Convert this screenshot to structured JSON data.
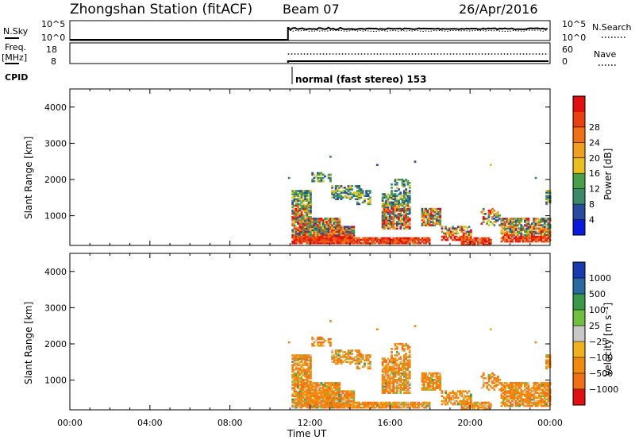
{
  "header": {
    "station": "Zhongshan Station (fitACF)",
    "beam": "Beam 07",
    "date": "26/Apr/2016"
  },
  "status_panels": {
    "nsky": {
      "left_label": "N.Sky",
      "left_ticks": [
        "10^5",
        "10^0"
      ],
      "right_label": "N.Search",
      "right_ticks": [
        "10^5",
        "10^0"
      ]
    },
    "freq": {
      "left_label_1": "Freq.",
      "left_label_2": "[MHz]",
      "left_ticks": [
        "18",
        "8"
      ],
      "right_label": "Nave",
      "right_ticks": [
        "60",
        "0"
      ]
    },
    "cpid": {
      "label": "CPID",
      "mode_text": "normal (fast stereo) 153"
    }
  },
  "colors": {
    "power_scale": [
      "#0a1adc",
      "#2a4aa0",
      "#3a8a6a",
      "#4aa04a",
      "#e8c020",
      "#f0a020",
      "#f07018",
      "#e84010",
      "#e01010"
    ],
    "velocity_scale": [
      "#e01010",
      "#f07018",
      "#f08a10",
      "#f0b020",
      "#c8c8c8",
      "#70c040",
      "#3a9a4a",
      "#2a6aa0",
      "#1a3ab0"
    ]
  },
  "chart_data": [
    {
      "type": "heatmap",
      "panel": "power",
      "title": "",
      "ylabel": "Slant Range [km]",
      "ylim": [
        180,
        4500
      ],
      "yticks": [
        "1000",
        "2000",
        "3000",
        "4000"
      ],
      "xlim": [
        0,
        24
      ],
      "colorbar_label": "Power [dB]",
      "colorbar_ticks": [
        "4",
        "8",
        "12",
        "16",
        "20",
        "24",
        "28"
      ],
      "data_start_hour": 10.9
    },
    {
      "type": "heatmap",
      "panel": "velocity",
      "title": "",
      "ylabel": "Slant Range [km]",
      "ylim": [
        180,
        4500
      ],
      "yticks": [
        "1000",
        "2000",
        "3000",
        "4000"
      ],
      "xlim": [
        0,
        24
      ],
      "xlabel": "Time UT",
      "xticks": [
        "00:00",
        "04:00",
        "08:00",
        "12:00",
        "16:00",
        "20:00",
        "00:00"
      ],
      "colorbar_label": "Velocity [m s⁻¹]",
      "colorbar_ticks": [
        "1000",
        "500",
        "100",
        "25",
        "−25",
        "−100",
        "−500",
        "−1000"
      ],
      "data_start_hour": 10.9
    }
  ]
}
